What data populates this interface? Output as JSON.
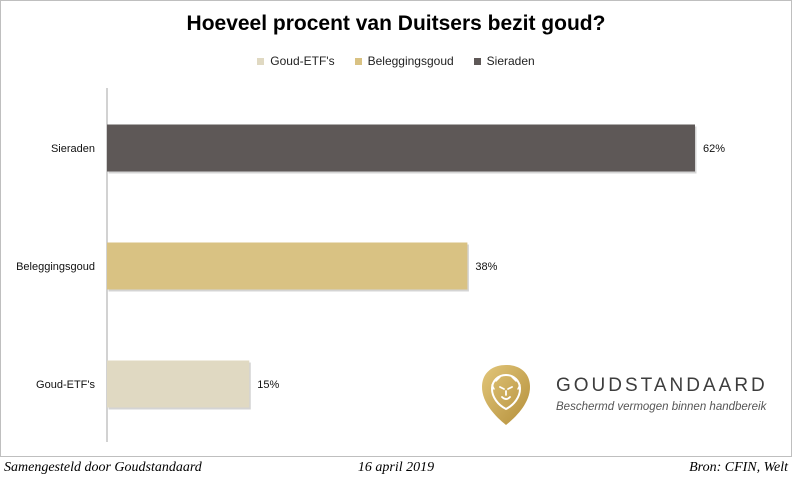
{
  "chart_data": {
    "type": "bar",
    "orientation": "horizontal",
    "title": "Hoeveel procent van Duitsers bezit goud?",
    "categories": [
      "Sieraden",
      "Beleggingsgoud",
      "Goud-ETF's"
    ],
    "values": [
      62,
      38,
      15
    ],
    "data_labels": [
      "62%",
      "38%",
      "15%"
    ],
    "bar_colors": [
      "#5e5857",
      "#d9c283",
      "#e0d9c2"
    ],
    "xlim": [
      0,
      65
    ],
    "grid": false,
    "legend_position": "top",
    "legend": [
      {
        "label": "Goud-ETF's",
        "color": "#e0d9c2"
      },
      {
        "label": "Beleggingsgoud",
        "color": "#d9c283"
      },
      {
        "label": "Sieraden",
        "color": "#5e5857"
      }
    ]
  },
  "brand": {
    "name": "GOUDSTANDAARD",
    "tagline": "Beschermd vermogen binnen handbereik",
    "logo_icon": "lion-shield-icon",
    "logo_color": "#c8a64e"
  },
  "footer": {
    "left": "Samengesteld door Goudstandaard",
    "center": "16 april 2019",
    "right": "Bron: CFIN, Welt"
  }
}
